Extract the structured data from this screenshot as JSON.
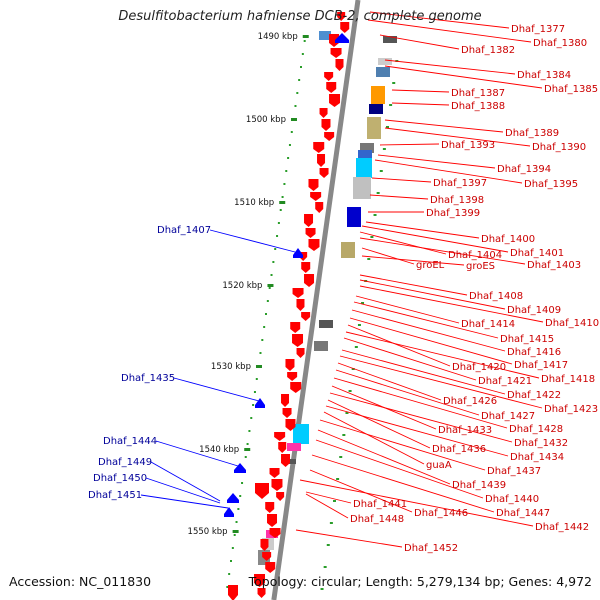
{
  "title": "Desulfitobacterium hafniense DCB-2, complete genome",
  "footer": {
    "accession": "Accession: NC_011830",
    "summary": "Topology: circular; Length: 5,279,134 bp; Genes: 4,972"
  },
  "colors": {
    "forward_gene": "#ff0000",
    "reverse_gene": "#0000ff",
    "label_forward": "#cc0000",
    "label_reverse": "#000099",
    "tick": "#228b22",
    "backbone": "#888888"
  },
  "ticks": [
    {
      "label": "1490 kbp"
    },
    {
      "label": "1500 kbp"
    },
    {
      "label": "1510 kbp"
    },
    {
      "label": "1520 kbp"
    },
    {
      "label": "1530 kbp"
    },
    {
      "label": "1540 kbp"
    },
    {
      "label": "1550 kbp"
    }
  ],
  "right_labels": [
    "Dhaf_1377",
    "Dhaf_1380",
    "Dhaf_1382",
    "Dhaf_1384",
    "Dhaf_1385",
    "Dhaf_1387",
    "Dhaf_1388",
    "Dhaf_1389",
    "Dhaf_1390",
    "Dhaf_1393",
    "Dhaf_1394",
    "Dhaf_1395",
    "Dhaf_1397",
    "Dhaf_1398",
    "Dhaf_1399",
    "Dhaf_1400",
    "Dhaf_1401",
    "Dhaf_1404",
    "Dhaf_1403",
    "groEL",
    "groES",
    "Dhaf_1408",
    "Dhaf_1409",
    "Dhaf_1410",
    "Dhaf_1414",
    "Dhaf_1415",
    "Dhaf_1416",
    "Dhaf_1417",
    "Dhaf_1420",
    "Dhaf_1418",
    "Dhaf_1421",
    "Dhaf_1422",
    "Dhaf_1423",
    "Dhaf_1426",
    "Dhaf_1427",
    "Dhaf_1428",
    "Dhaf_1433",
    "Dhaf_1432",
    "Dhaf_1436",
    "Dhaf_1434",
    "guaA",
    "Dhaf_1437",
    "Dhaf_1439",
    "Dhaf_1440",
    "Dhaf_1441",
    "Dhaf_1447",
    "Dhaf_1446",
    "Dhaf_1448",
    "Dhaf_1442",
    "Dhaf_1452"
  ],
  "left_labels": [
    "Dhaf_1407",
    "Dhaf_1435",
    "Dhaf_1444",
    "Dhaf_1449",
    "Dhaf_1450",
    "Dhaf_1451"
  ]
}
